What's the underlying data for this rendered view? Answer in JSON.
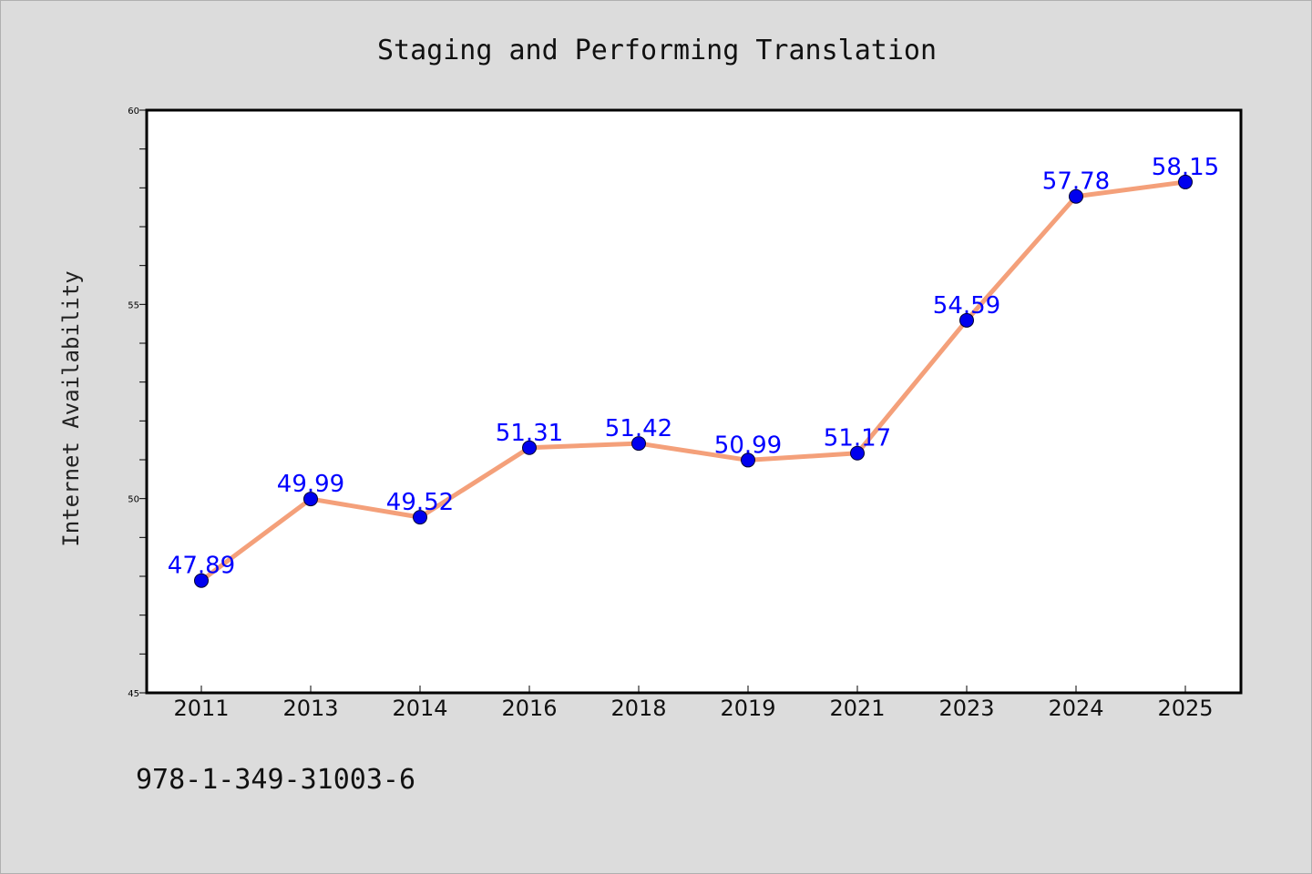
{
  "chart_data": {
    "type": "line",
    "title": "Staging and Performing Translation",
    "xlabel": "",
    "ylabel": "Internet Availability",
    "categories": [
      "2011",
      "2013",
      "2014",
      "2016",
      "2018",
      "2019",
      "2021",
      "2023",
      "2024",
      "2025"
    ],
    "values": [
      47.89,
      49.99,
      49.52,
      51.31,
      51.42,
      50.99,
      51.17,
      54.59,
      57.78,
      58.15
    ],
    "data_labels": [
      "47.89",
      "49.99",
      "49.52",
      "51.31",
      "51.42",
      "50.99",
      "51.17",
      "54.59",
      "57.78",
      "58.15"
    ],
    "ylim": [
      45,
      60
    ],
    "yticks_major": [
      "45",
      "50",
      "55",
      "60"
    ],
    "grid": false,
    "legend": "none",
    "line_color": "#f4a07a",
    "marker_color": "#0000ee",
    "label_color": "#0000ff"
  },
  "footer": {
    "note": "978-1-349-31003-6"
  }
}
